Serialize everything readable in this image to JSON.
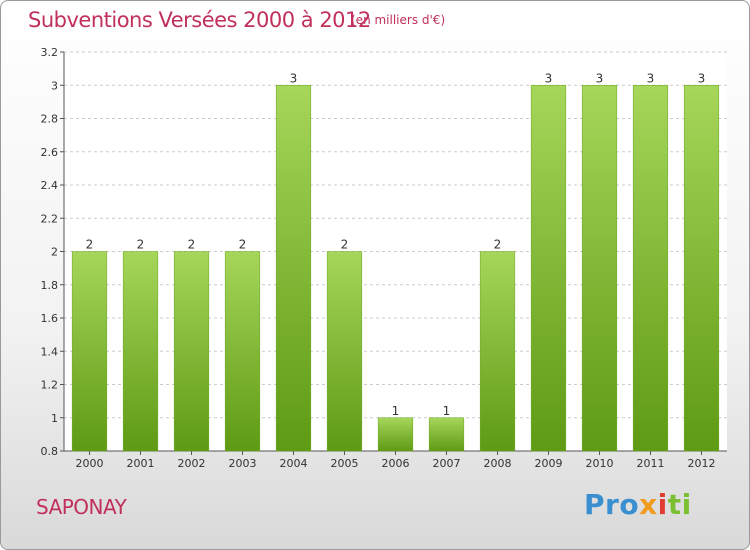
{
  "title": "Subventions Versées 2000 à 2012",
  "subtitle": "(en milliers d'€)",
  "location": "SAPONAY",
  "brand": {
    "parts": [
      "Pro",
      "x",
      "i",
      "ti"
    ],
    "colors": [
      "#3a8fd0",
      "#f09a1e",
      "#e03c32",
      "#7bbf33"
    ]
  },
  "colors": {
    "bar_light": "#a6d65a",
    "bar_dark": "#5e9a14",
    "title": "#c0305a",
    "grid": "#cccccc"
  },
  "chart_data": {
    "type": "bar",
    "title": "Subventions Versées 2000 à 2012",
    "categories": [
      "2000",
      "2001",
      "2002",
      "2003",
      "2004",
      "2005",
      "2006",
      "2007",
      "2008",
      "2009",
      "2010",
      "2011",
      "2012"
    ],
    "values": [
      2,
      2,
      2,
      2,
      3,
      2,
      1,
      1,
      2,
      3,
      3,
      3,
      3
    ],
    "data_labels": [
      "2",
      "2",
      "2",
      "2",
      "3",
      "2",
      "1",
      "1",
      "2",
      "3",
      "3",
      "3",
      "3"
    ],
    "ylim": [
      0.8,
      3.2
    ],
    "yticks": [
      0.8,
      1,
      1.2,
      1.4,
      1.6,
      1.8,
      2,
      2.2,
      2.4,
      2.6,
      2.8,
      3,
      3.2
    ],
    "ytick_labels": [
      "0.8",
      "1",
      "1.2",
      "1.4",
      "1.6",
      "1.8",
      "2",
      "2.2",
      "2.4",
      "2.6",
      "2.8",
      "3",
      "3.2"
    ],
    "grid": "horizontal dashed",
    "xlabel": "",
    "ylabel": ""
  }
}
